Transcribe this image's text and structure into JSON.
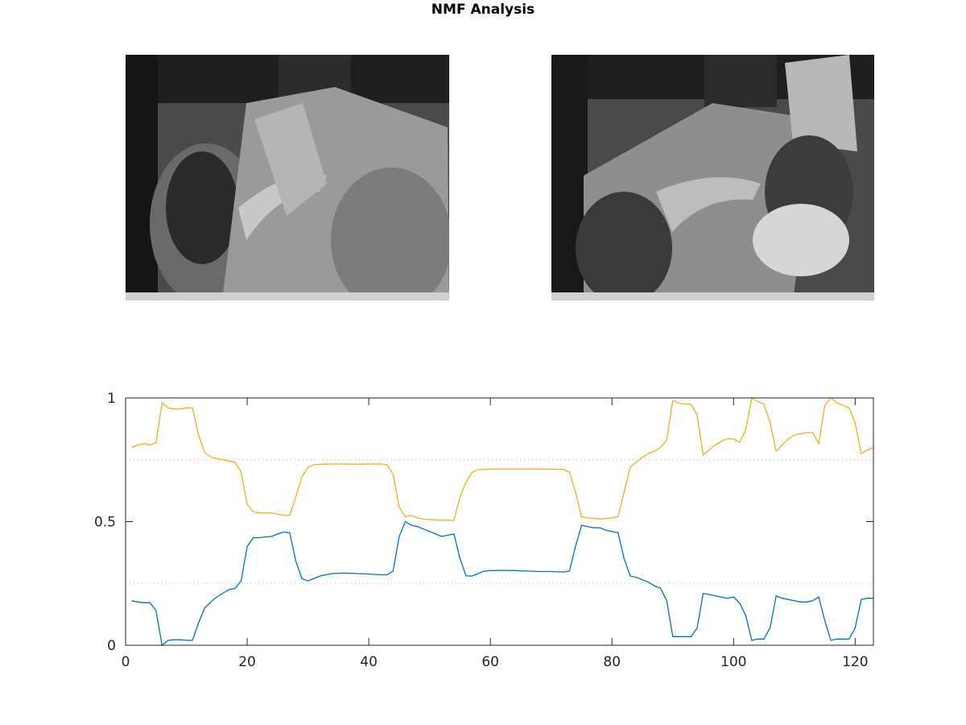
{
  "figure": {
    "title": "NMF Analysis"
  },
  "images": [
    {
      "name": "nmf-basis-image-1",
      "description_type": "grayscale-photo"
    },
    {
      "name": "nmf-basis-image-2",
      "description_type": "grayscale-photo"
    }
  ],
  "chart_data": {
    "type": "line",
    "title": "",
    "xlabel": "",
    "ylabel": "",
    "xlim": [
      0,
      123
    ],
    "ylim": [
      0,
      1
    ],
    "x_ticks": [
      0,
      20,
      40,
      60,
      80,
      100,
      120
    ],
    "y_ticks": [
      0,
      0.5,
      1
    ],
    "y_tick_labels": [
      "0",
      "0.5",
      "1"
    ],
    "grid": false,
    "legend": "none",
    "reference_lines": [
      {
        "y": 0.75,
        "color": "#e0a0a0",
        "style": "dotted"
      },
      {
        "y": 0.25,
        "color": "#e0a0a0",
        "style": "dotted"
      }
    ],
    "series": [
      {
        "color": "#edb120",
        "points": [
          [
            1,
            0.8
          ],
          [
            2,
            0.81
          ],
          [
            3,
            0.815
          ],
          [
            4,
            0.81
          ],
          [
            5,
            0.82
          ],
          [
            6,
            0.98
          ],
          [
            7,
            0.96
          ],
          [
            8,
            0.955
          ],
          [
            9,
            0.955
          ],
          [
            10,
            0.96
          ],
          [
            11,
            0.96
          ],
          [
            12,
            0.85
          ],
          [
            13,
            0.78
          ],
          [
            14,
            0.76
          ],
          [
            15,
            0.755
          ],
          [
            16,
            0.75
          ],
          [
            17,
            0.745
          ],
          [
            18,
            0.74
          ],
          [
            19,
            0.7
          ],
          [
            20,
            0.57
          ],
          [
            21,
            0.54
          ],
          [
            22,
            0.535
          ],
          [
            23,
            0.535
          ],
          [
            24,
            0.535
          ],
          [
            25,
            0.53
          ],
          [
            26,
            0.525
          ],
          [
            27,
            0.525
          ],
          [
            28,
            0.6
          ],
          [
            29,
            0.68
          ],
          [
            30,
            0.72
          ],
          [
            31,
            0.73
          ],
          [
            32,
            0.732
          ],
          [
            34,
            0.733
          ],
          [
            36,
            0.733
          ],
          [
            38,
            0.732
          ],
          [
            40,
            0.733
          ],
          [
            42,
            0.733
          ],
          [
            43,
            0.73
          ],
          [
            44,
            0.69
          ],
          [
            45,
            0.56
          ],
          [
            46,
            0.52
          ],
          [
            47,
            0.525
          ],
          [
            48,
            0.515
          ],
          [
            49,
            0.51
          ],
          [
            50,
            0.508
          ],
          [
            52,
            0.506
          ],
          [
            54,
            0.505
          ],
          [
            55,
            0.6
          ],
          [
            56,
            0.66
          ],
          [
            57,
            0.7
          ],
          [
            58,
            0.71
          ],
          [
            60,
            0.712
          ],
          [
            62,
            0.713
          ],
          [
            64,
            0.713
          ],
          [
            66,
            0.713
          ],
          [
            68,
            0.712
          ],
          [
            70,
            0.712
          ],
          [
            72,
            0.711
          ],
          [
            73,
            0.7
          ],
          [
            74,
            0.62
          ],
          [
            75,
            0.52
          ],
          [
            76,
            0.515
          ],
          [
            77,
            0.513
          ],
          [
            78,
            0.51
          ],
          [
            79,
            0.512
          ],
          [
            80,
            0.515
          ],
          [
            81,
            0.52
          ],
          [
            82,
            0.62
          ],
          [
            83,
            0.72
          ],
          [
            84,
            0.74
          ],
          [
            85,
            0.76
          ],
          [
            86,
            0.775
          ],
          [
            87,
            0.785
          ],
          [
            88,
            0.8
          ],
          [
            89,
            0.83
          ],
          [
            90,
            0.99
          ],
          [
            91,
            0.98
          ],
          [
            92,
            0.975
          ],
          [
            93,
            0.975
          ],
          [
            94,
            0.93
          ],
          [
            95,
            0.77
          ],
          [
            96,
            0.79
          ],
          [
            97,
            0.81
          ],
          [
            98,
            0.825
          ],
          [
            99,
            0.835
          ],
          [
            100,
            0.835
          ],
          [
            101,
            0.82
          ],
          [
            102,
            0.87
          ],
          [
            103,
            1.0
          ],
          [
            104,
            0.985
          ],
          [
            105,
            0.975
          ],
          [
            106,
            0.9
          ],
          [
            107,
            0.785
          ],
          [
            108,
            0.81
          ],
          [
            109,
            0.835
          ],
          [
            110,
            0.85
          ],
          [
            111,
            0.855
          ],
          [
            112,
            0.86
          ],
          [
            113,
            0.86
          ],
          [
            114,
            0.815
          ],
          [
            115,
            0.97
          ],
          [
            116,
            1.0
          ],
          [
            117,
            0.98
          ],
          [
            118,
            0.97
          ],
          [
            119,
            0.96
          ],
          [
            120,
            0.9
          ],
          [
            121,
            0.775
          ],
          [
            122,
            0.79
          ],
          [
            123,
            0.8
          ]
        ]
      },
      {
        "color": "#0072bd",
        "points": [
          [
            1,
            0.18
          ],
          [
            2,
            0.175
          ],
          [
            3,
            0.172
          ],
          [
            4,
            0.172
          ],
          [
            5,
            0.14
          ],
          [
            6,
            0.0
          ],
          [
            7,
            0.02
          ],
          [
            8,
            0.022
          ],
          [
            9,
            0.022
          ],
          [
            10,
            0.02
          ],
          [
            11,
            0.02
          ],
          [
            12,
            0.09
          ],
          [
            13,
            0.15
          ],
          [
            14,
            0.175
          ],
          [
            15,
            0.195
          ],
          [
            16,
            0.21
          ],
          [
            17,
            0.225
          ],
          [
            18,
            0.23
          ],
          [
            19,
            0.26
          ],
          [
            20,
            0.4
          ],
          [
            21,
            0.435
          ],
          [
            22,
            0.435
          ],
          [
            23,
            0.438
          ],
          [
            24,
            0.44
          ],
          [
            25,
            0.45
          ],
          [
            26,
            0.458
          ],
          [
            27,
            0.455
          ],
          [
            28,
            0.34
          ],
          [
            29,
            0.27
          ],
          [
            30,
            0.26
          ],
          [
            31,
            0.27
          ],
          [
            32,
            0.28
          ],
          [
            33,
            0.285
          ],
          [
            34,
            0.29
          ],
          [
            36,
            0.292
          ],
          [
            38,
            0.29
          ],
          [
            40,
            0.288
          ],
          [
            42,
            0.285
          ],
          [
            43,
            0.285
          ],
          [
            44,
            0.3
          ],
          [
            45,
            0.44
          ],
          [
            46,
            0.5
          ],
          [
            47,
            0.485
          ],
          [
            48,
            0.48
          ],
          [
            49,
            0.47
          ],
          [
            50,
            0.46
          ],
          [
            51,
            0.45
          ],
          [
            52,
            0.44
          ],
          [
            53,
            0.445
          ],
          [
            54,
            0.45
          ],
          [
            55,
            0.35
          ],
          [
            56,
            0.28
          ],
          [
            57,
            0.28
          ],
          [
            58,
            0.29
          ],
          [
            59,
            0.3
          ],
          [
            60,
            0.302
          ],
          [
            62,
            0.303
          ],
          [
            64,
            0.302
          ],
          [
            66,
            0.3
          ],
          [
            68,
            0.298
          ],
          [
            70,
            0.298
          ],
          [
            72,
            0.296
          ],
          [
            73,
            0.3
          ],
          [
            74,
            0.4
          ],
          [
            75,
            0.485
          ],
          [
            76,
            0.48
          ],
          [
            77,
            0.475
          ],
          [
            78,
            0.475
          ],
          [
            79,
            0.465
          ],
          [
            80,
            0.46
          ],
          [
            81,
            0.455
          ],
          [
            82,
            0.35
          ],
          [
            83,
            0.28
          ],
          [
            84,
            0.275
          ],
          [
            85,
            0.265
          ],
          [
            86,
            0.255
          ],
          [
            87,
            0.24
          ],
          [
            88,
            0.23
          ],
          [
            89,
            0.18
          ],
          [
            90,
            0.035
          ],
          [
            91,
            0.035
          ],
          [
            92,
            0.035
          ],
          [
            93,
            0.035
          ],
          [
            94,
            0.07
          ],
          [
            95,
            0.21
          ],
          [
            96,
            0.205
          ],
          [
            97,
            0.2
          ],
          [
            98,
            0.195
          ],
          [
            99,
            0.19
          ],
          [
            100,
            0.195
          ],
          [
            101,
            0.17
          ],
          [
            102,
            0.12
          ],
          [
            103,
            0.02
          ],
          [
            104,
            0.025
          ],
          [
            105,
            0.025
          ],
          [
            106,
            0.07
          ],
          [
            107,
            0.2
          ],
          [
            108,
            0.19
          ],
          [
            109,
            0.185
          ],
          [
            110,
            0.18
          ],
          [
            111,
            0.175
          ],
          [
            112,
            0.175
          ],
          [
            113,
            0.18
          ],
          [
            114,
            0.195
          ],
          [
            115,
            0.1
          ],
          [
            116,
            0.02
          ],
          [
            117,
            0.025
          ],
          [
            118,
            0.025
          ],
          [
            119,
            0.025
          ],
          [
            120,
            0.07
          ],
          [
            121,
            0.185
          ],
          [
            122,
            0.19
          ],
          [
            123,
            0.19
          ]
        ]
      }
    ]
  }
}
